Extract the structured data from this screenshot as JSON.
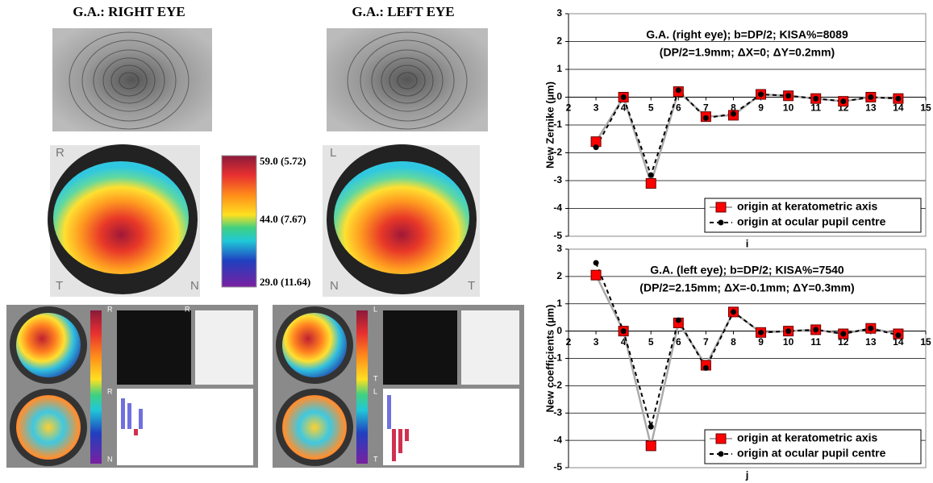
{
  "panels": {
    "right_title": "G.A.: RIGHT EYE",
    "left_title": "G.A.: LEFT EYE",
    "colorbar_labels": [
      "59.0 (5.72)",
      "44.0 (7.67)",
      "29.0 (11.64)"
    ],
    "right_map_labels": [
      "R",
      "T",
      "N"
    ],
    "left_map_labels": [
      "L",
      "N",
      "T"
    ],
    "right_report_labels": [
      "R",
      "R",
      "R",
      "N"
    ],
    "left_report_labels": [
      "L",
      "L",
      "T",
      "T"
    ]
  },
  "chart_data": [
    {
      "type": "line",
      "title": "G.A. (right eye); b=DP/2; KISA%=8089",
      "subtitle": "(DP/2=1.9mm; ΔX=0; ΔY=0.2mm)",
      "y_label": "New Zernike (µm)",
      "x_label": "i",
      "x": [
        3,
        4,
        5,
        6,
        7,
        8,
        9,
        10,
        11,
        12,
        13,
        14
      ],
      "series": [
        {
          "name": "origin at keratometric axis",
          "color": "#ff0000",
          "line_color": "#aaaaaa",
          "line_style": "solid",
          "marker": "square",
          "values": [
            -1.6,
            0.0,
            -3.1,
            0.2,
            -0.7,
            -0.65,
            0.1,
            0.05,
            -0.05,
            -0.15,
            0.0,
            -0.05
          ]
        },
        {
          "name": "origin at ocular pupil centre",
          "color": "#000000",
          "line_color": "#000000",
          "line_style": "dashed",
          "marker": "circle",
          "values": [
            -1.8,
            0.0,
            -2.8,
            0.25,
            -0.75,
            -0.6,
            0.1,
            0.05,
            -0.05,
            -0.15,
            0.0,
            -0.05
          ]
        }
      ],
      "xlim": [
        2,
        15
      ],
      "xticks": [
        2,
        3,
        4,
        5,
        6,
        7,
        8,
        9,
        10,
        11,
        12,
        13,
        14,
        15
      ],
      "ylim": [
        -5,
        3
      ],
      "yticks": [
        -5,
        -4,
        -3,
        -2,
        -1,
        0,
        1,
        2,
        3
      ],
      "grid": true,
      "legend": "lower right"
    },
    {
      "type": "line",
      "title": "G.A. (left eye); b=DP/2; KISA%=7540",
      "subtitle": "(DP/2=2.15mm; ΔX=-0.1mm; ΔY=0.3mm)",
      "y_label": "New coefficients (µm)",
      "x_label": "j",
      "x": [
        3,
        4,
        5,
        6,
        7,
        8,
        9,
        10,
        11,
        12,
        13,
        14
      ],
      "series": [
        {
          "name": "origin at keratometric axis",
          "color": "#ff0000",
          "line_color": "#aaaaaa",
          "line_style": "solid",
          "marker": "square",
          "values": [
            2.05,
            0.0,
            -4.2,
            0.3,
            -1.25,
            0.7,
            -0.05,
            0.0,
            0.05,
            -0.1,
            0.1,
            -0.1
          ]
        },
        {
          "name": "origin at ocular pupil centre",
          "color": "#000000",
          "line_color": "#000000",
          "line_style": "dashed",
          "marker": "circle",
          "values": [
            2.5,
            0.0,
            -3.5,
            0.4,
            -1.35,
            0.7,
            -0.05,
            0.0,
            0.05,
            -0.1,
            0.1,
            -0.15
          ]
        }
      ],
      "xlim": [
        2,
        15
      ],
      "xticks": [
        2,
        3,
        4,
        5,
        6,
        7,
        8,
        9,
        10,
        11,
        12,
        13,
        14,
        15
      ],
      "ylim": [
        -5,
        3
      ],
      "yticks": [
        -5,
        -4,
        -3,
        -2,
        -1,
        0,
        1,
        2,
        3
      ],
      "grid": true,
      "legend": "lower right"
    }
  ]
}
